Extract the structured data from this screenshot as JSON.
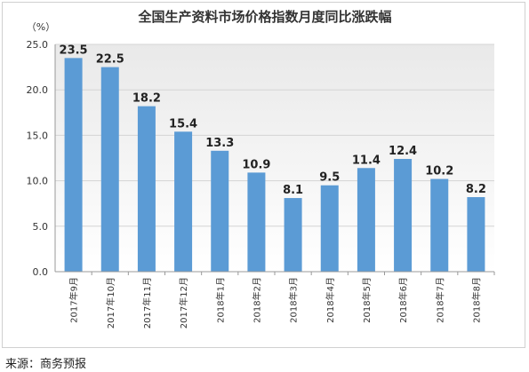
{
  "chart_data": {
    "type": "bar",
    "title": "全国生产资料市场价格指数月度同比涨跌幅",
    "unit_label": "（%）",
    "categories": [
      "2017年9月",
      "2017年10月",
      "2017年11月",
      "2017年12月",
      "2018年1月",
      "2018年2月",
      "2018年3月",
      "2018年4月",
      "2018年5月",
      "2018年6月",
      "2018年7月",
      "2018年8月"
    ],
    "values": [
      23.5,
      22.5,
      18.2,
      15.4,
      13.3,
      10.9,
      8.1,
      9.5,
      11.4,
      12.4,
      10.2,
      8.2
    ],
    "value_labels": [
      "23.5",
      "22.5",
      "18.2",
      "15.4",
      "13.3",
      "10.9",
      "8.1",
      "9.5",
      "11.4",
      "12.4",
      "10.2",
      "8.2"
    ],
    "y_ticks": [
      "0.0",
      "5.0",
      "10.0",
      "15.0",
      "20.0",
      "25.0"
    ],
    "ylim": [
      0,
      25
    ],
    "grid": true,
    "bar_color": "#5b9bd5"
  },
  "source": "来源：商务预报"
}
